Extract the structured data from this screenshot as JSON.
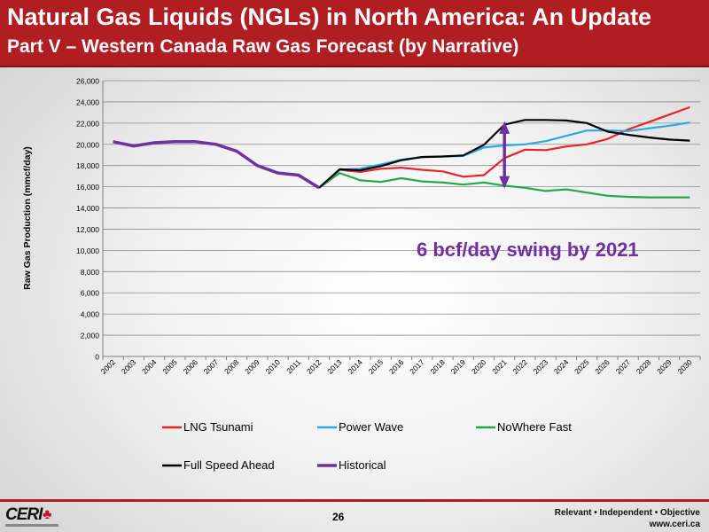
{
  "header": {
    "title": "Natural Gas Liquids (NGLs) in North America:  An Update",
    "subtitle": "Part V – Western Canada Raw Gas Forecast  (by Narrative)"
  },
  "annotation": "6 bcf/day swing by 2021",
  "footer": {
    "page": "26",
    "tagline": "Relevant • Independent • Objective",
    "url": "www.ceri.ca",
    "logo_text": "CERI"
  },
  "colors": {
    "brand_red": "#b01e23",
    "annotation": "#7030a0"
  },
  "chart_data": {
    "type": "line",
    "ylabel": "Raw Gas Production (mmcf/day)",
    "xlabel": "",
    "ylim": [
      0,
      26000
    ],
    "yticks": [
      0,
      2000,
      4000,
      6000,
      8000,
      10000,
      12000,
      14000,
      16000,
      18000,
      20000,
      22000,
      24000,
      26000
    ],
    "ytick_labels": [
      "0",
      "2,000",
      "4,000",
      "6,000",
      "8,000",
      "10,000",
      "12,000",
      "14,000",
      "16,000",
      "18,000",
      "20,000",
      "22,000",
      "24,000",
      "26,000"
    ],
    "categories": [
      "2002",
      "2003",
      "2004",
      "2005",
      "2006",
      "2007",
      "2008",
      "2009",
      "2010",
      "2011",
      "2012",
      "2013",
      "2014",
      "2015",
      "2016",
      "2017",
      "2018",
      "2019",
      "2020",
      "2021",
      "2022",
      "2023",
      "2024",
      "2025",
      "2026",
      "2027",
      "2028",
      "2029",
      "2030"
    ],
    "grid": true,
    "legend_position": "bottom",
    "series": [
      {
        "name": "LNG Tsunami",
        "color": "#e8232a",
        "values": [
          null,
          null,
          null,
          null,
          null,
          null,
          null,
          null,
          null,
          null,
          15900,
          17600,
          17400,
          17700,
          17800,
          17600,
          17450,
          16950,
          17100,
          18700,
          19500,
          19450,
          19800,
          20000,
          20500,
          21400,
          22100,
          22800,
          23500
        ]
      },
      {
        "name": "Power Wave",
        "color": "#29a9e1",
        "values": [
          null,
          null,
          null,
          null,
          null,
          null,
          null,
          null,
          null,
          null,
          15900,
          17600,
          17700,
          18100,
          18550,
          18800,
          18850,
          18900,
          19700,
          19900,
          20000,
          20300,
          20800,
          21300,
          21300,
          21250,
          21500,
          21750,
          22050
        ]
      },
      {
        "name": "NoWhere Fast",
        "color": "#22a84a",
        "values": [
          null,
          null,
          null,
          null,
          null,
          null,
          null,
          null,
          null,
          null,
          15900,
          17300,
          16600,
          16450,
          16800,
          16500,
          16400,
          16200,
          16400,
          16100,
          15900,
          15600,
          15750,
          15450,
          15150,
          15050,
          15000,
          15000,
          15000
        ]
      },
      {
        "name": "Full Speed Ahead",
        "color": "#000000",
        "values": [
          null,
          null,
          null,
          null,
          null,
          null,
          null,
          null,
          null,
          null,
          15900,
          17650,
          17550,
          17950,
          18500,
          18800,
          18850,
          18950,
          19950,
          21850,
          22300,
          22300,
          22250,
          22000,
          21200,
          20900,
          20650,
          20450,
          20350
        ]
      },
      {
        "name": "Historical",
        "color": "#7030a0",
        "values": [
          20250,
          19850,
          20150,
          20250,
          20250,
          20000,
          19350,
          18000,
          17300,
          17100,
          15900,
          null,
          null,
          null,
          null,
          null,
          null,
          null,
          null,
          null,
          null,
          null,
          null,
          null,
          null,
          null,
          null,
          null,
          null
        ]
      }
    ],
    "swing_arrow": {
      "x": "2021",
      "y_from": 16000,
      "y_to": 22000
    }
  }
}
